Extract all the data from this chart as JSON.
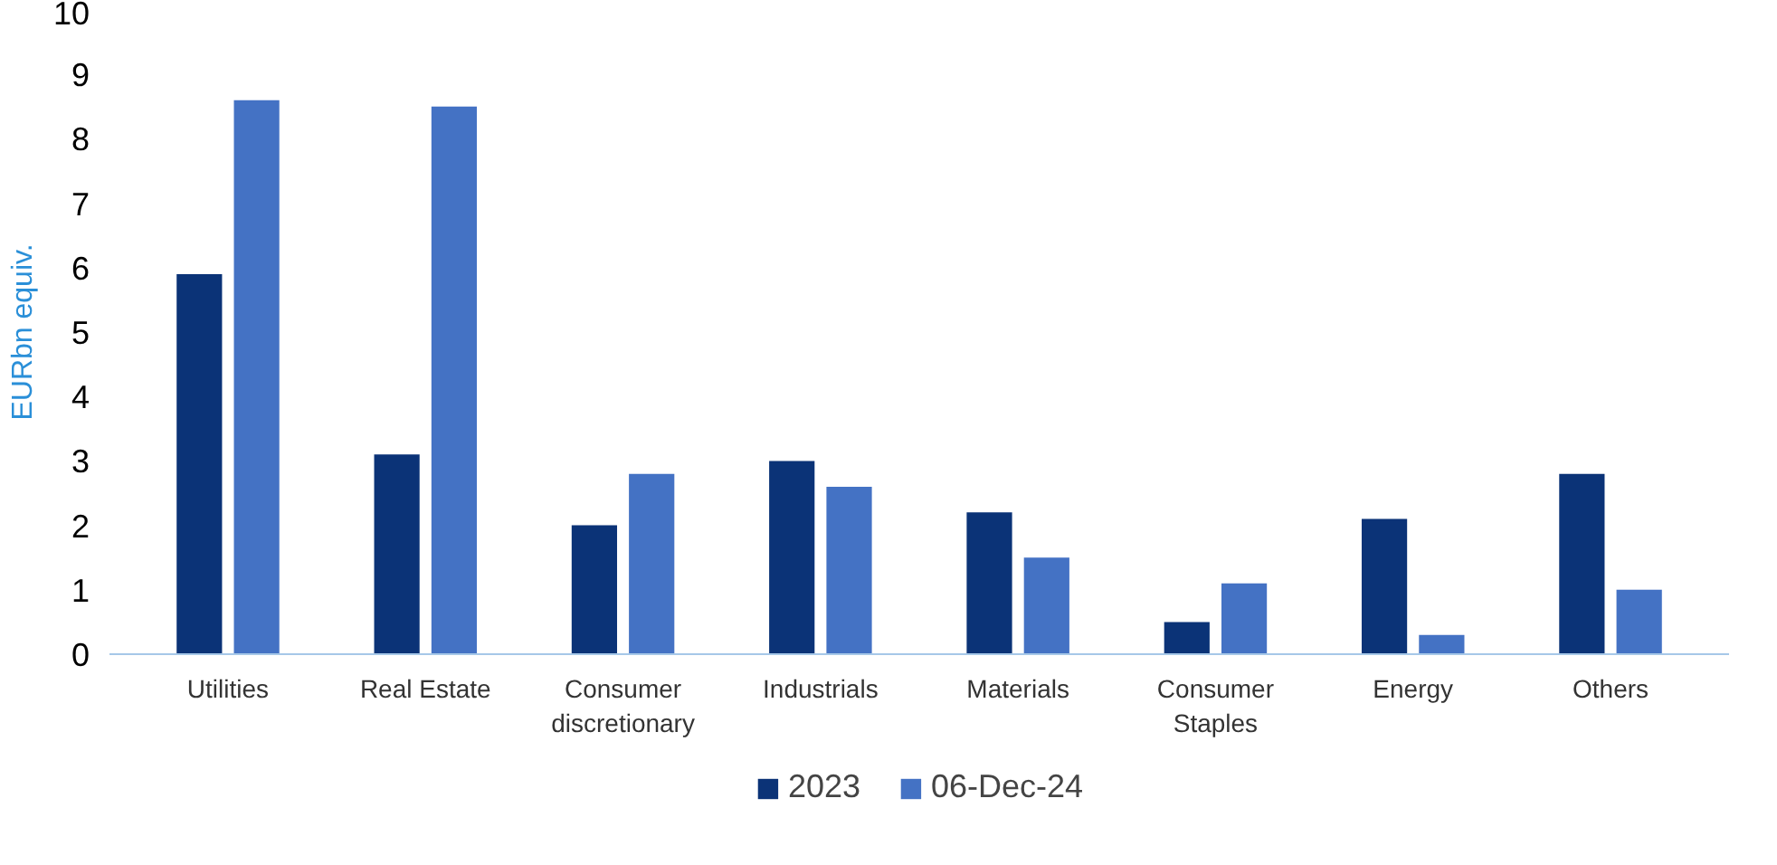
{
  "chart_data": {
    "type": "bar",
    "ylabel": "EURbn equiv.",
    "categories": [
      "Utilities",
      "Real Estate",
      "Consumer\ndiscretionary",
      "Industrials",
      "Materials",
      "Consumer\nStaples",
      "Energy",
      "Others"
    ],
    "series": [
      {
        "name": "2023",
        "color": "#0b3377",
        "values": [
          5.9,
          3.1,
          2.0,
          3.0,
          2.2,
          0.5,
          2.1,
          2.8
        ]
      },
      {
        "name": "06-Dec-24",
        "color": "#4472c4",
        "values": [
          8.6,
          8.5,
          2.8,
          2.6,
          1.5,
          1.1,
          0.3,
          1.0
        ]
      }
    ],
    "ylim": [
      0,
      10
    ],
    "yticks": [
      0,
      1,
      2,
      3,
      4,
      5,
      6,
      7,
      8,
      9,
      10
    ],
    "grid": false,
    "legend": "bottom"
  }
}
